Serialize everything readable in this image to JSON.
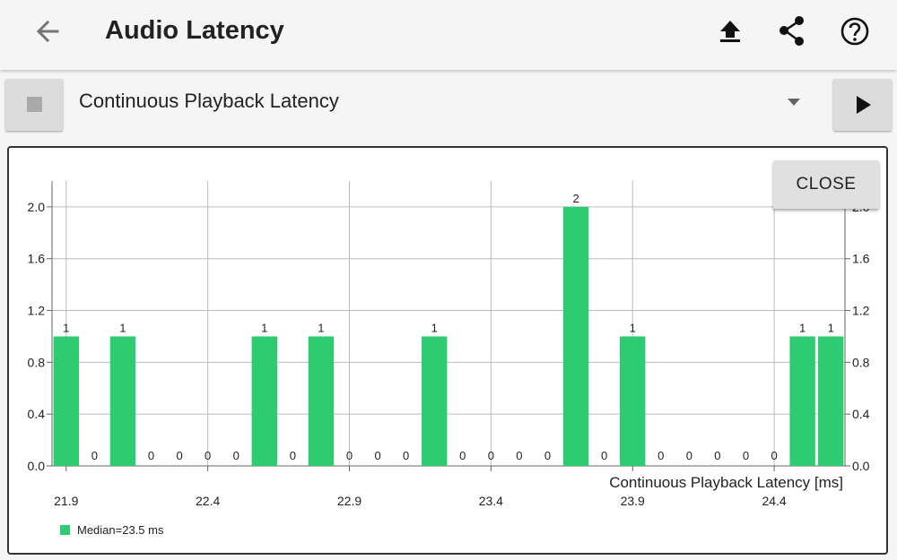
{
  "appbar": {
    "title": "Audio Latency",
    "icons": [
      "arrow-back-icon",
      "upload-icon",
      "share-icon",
      "help-icon"
    ]
  },
  "toolbar": {
    "test_selection": "Continuous Playback Latency"
  },
  "close_label": "CLOSE",
  "colors": {
    "bar": "#2ecc71",
    "background": "#f5f5f5",
    "grid": "#bbbbbb"
  },
  "chart_data": {
    "type": "bar",
    "categories": [
      21.9,
      22.0,
      22.1,
      22.2,
      22.3,
      22.4,
      22.5,
      22.6,
      22.7,
      22.8,
      22.9,
      23.0,
      23.1,
      23.2,
      23.3,
      23.4,
      23.5,
      23.6,
      23.7,
      23.8,
      23.9,
      24.0,
      24.1,
      24.2,
      24.3,
      24.4,
      24.5,
      24.6
    ],
    "values": [
      1,
      0,
      1,
      0,
      0,
      0,
      0,
      1,
      0,
      1,
      0,
      0,
      0,
      1,
      0,
      0,
      0,
      0,
      2,
      0,
      1,
      0,
      0,
      0,
      0,
      0,
      1,
      1
    ],
    "xlabel": "Continuous Playback Latency [ms]",
    "x_ticks": [
      "21.9",
      "22.4",
      "22.9",
      "23.4",
      "23.9",
      "24.4"
    ],
    "y_ticks": [
      "0.0",
      "0.4",
      "0.8",
      "1.2",
      "1.6",
      "2.0"
    ],
    "ylim": [
      0,
      2.2
    ],
    "legend": "Median=23.5 ms",
    "legend_position": "bottom-left",
    "grid": true
  }
}
